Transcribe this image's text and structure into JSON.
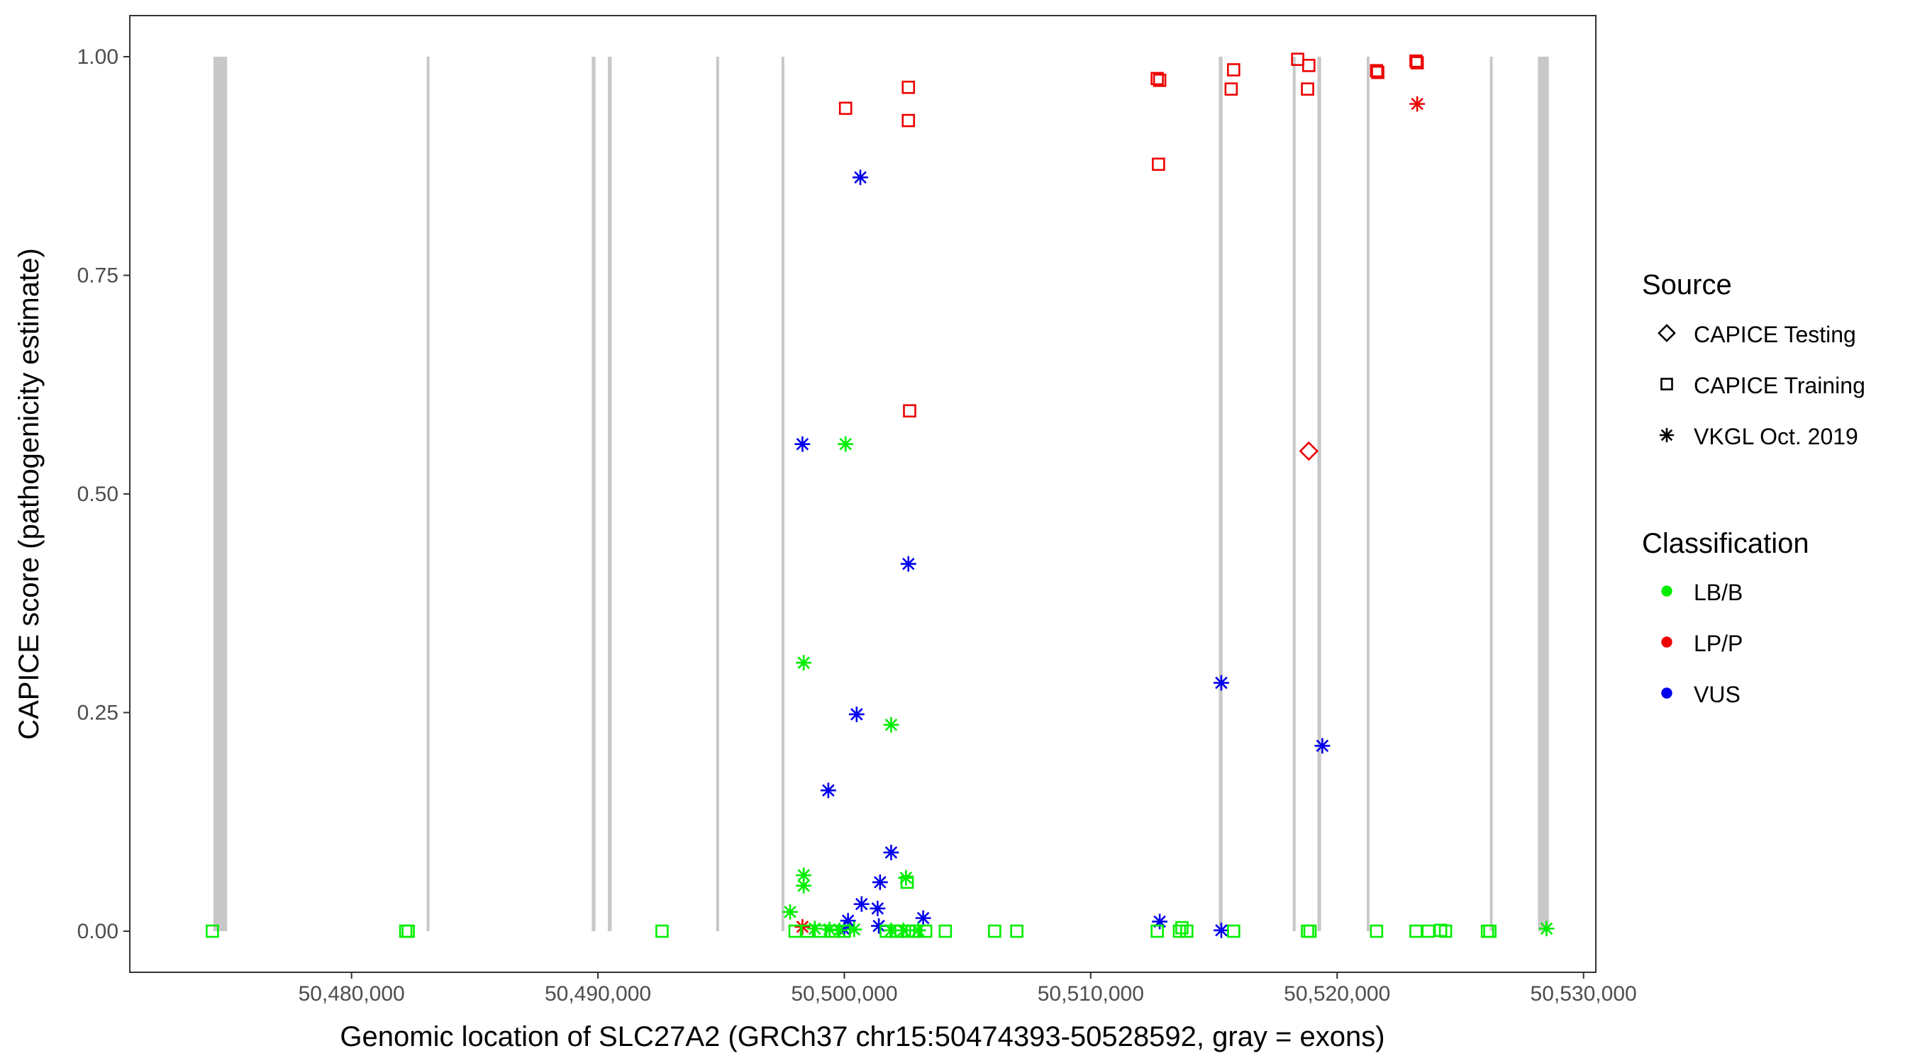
{
  "chart_data": {
    "type": "scatter",
    "xlabel": "Genomic location of SLC27A2 (GRCh37 chr15:50474393-50528592, gray = exons)",
    "ylabel": "CAPICE score (pathogenicity estimate)",
    "xlim": [
      50471000,
      50530500
    ],
    "ylim": [
      -0.047,
      1.047
    ],
    "x_ticks": [
      50480000,
      50490000,
      50500000,
      50510000,
      50520000,
      50530000
    ],
    "x_tick_labels": [
      "50,480,000",
      "50,490,000",
      "50,500,000",
      "50,510,000",
      "50,520,000",
      "50,530,000"
    ],
    "y_ticks": [
      0,
      0.25,
      0.5,
      0.75,
      1
    ],
    "y_tick_labels": [
      "0.00",
      "0.25",
      "0.50",
      "0.75",
      "1.00"
    ],
    "grid": false,
    "exon_color": "#c8c8c8",
    "exons": [
      [
        50474393,
        50474950
      ],
      [
        50483050,
        50483150
      ],
      [
        50489750,
        50489900
      ],
      [
        50490400,
        50490560
      ],
      [
        50494800,
        50494900
      ],
      [
        50497450,
        50497550
      ],
      [
        50515200,
        50515350
      ],
      [
        50518200,
        50518300
      ],
      [
        50519200,
        50519350
      ],
      [
        50521200,
        50521300
      ],
      [
        50526200,
        50526300
      ],
      [
        50528150,
        50528592
      ]
    ],
    "legend": {
      "placement": "right",
      "source_title": "Source",
      "source_entries": [
        {
          "label": "CAPICE Testing",
          "shape": "diamond"
        },
        {
          "label": "CAPICE Training",
          "shape": "square"
        },
        {
          "label": "VKGL Oct. 2019",
          "shape": "asterisk"
        }
      ],
      "class_title": "Classification",
      "class_entries": [
        {
          "label": "LB/B",
          "color": "#00ee00"
        },
        {
          "label": "LP/P",
          "color": "#ee0000"
        },
        {
          "label": "VUS",
          "color": "#0000ee"
        }
      ]
    },
    "series": [
      {
        "source": "CAPICE Training",
        "class": "LP/P",
        "shape": "square",
        "color": "#ee0000",
        "points": [
          [
            50500050,
            0.941
          ],
          [
            50502600,
            0.965
          ],
          [
            50502600,
            0.927
          ],
          [
            50502650,
            0.595
          ],
          [
            50512700,
            0.975
          ],
          [
            50512800,
            0.973
          ],
          [
            50512750,
            0.877
          ],
          [
            50515800,
            0.985
          ],
          [
            50515700,
            0.963
          ],
          [
            50518400,
            0.997
          ],
          [
            50518850,
            0.99
          ],
          [
            50518800,
            0.963
          ],
          [
            50521600,
            0.984
          ],
          [
            50521650,
            0.982
          ],
          [
            50523200,
            0.995
          ],
          [
            50523250,
            0.993
          ]
        ]
      },
      {
        "source": "CAPICE Testing",
        "class": "LP/P",
        "shape": "diamond",
        "color": "#ee0000",
        "points": [
          [
            50518850,
            0.549
          ]
        ]
      },
      {
        "source": "VKGL Oct. 2019",
        "class": "LP/P",
        "shape": "asterisk",
        "color": "#ee0000",
        "points": [
          [
            50523250,
            0.946
          ],
          [
            50498300,
            0.005
          ]
        ]
      },
      {
        "source": "VKGL Oct. 2019",
        "class": "VUS",
        "shape": "asterisk",
        "color": "#0000ee",
        "points": [
          [
            50500650,
            0.862
          ],
          [
            50498300,
            0.557
          ],
          [
            50502600,
            0.42
          ],
          [
            50515300,
            0.284
          ],
          [
            50500500,
            0.248
          ],
          [
            50519400,
            0.212
          ],
          [
            50499350,
            0.161
          ],
          [
            50501900,
            0.09
          ],
          [
            50501450,
            0.056
          ],
          [
            50500700,
            0.031
          ],
          [
            50501350,
            0.026
          ],
          [
            50503200,
            0.015
          ],
          [
            50500150,
            0.012
          ],
          [
            50512800,
            0.011
          ],
          [
            50501400,
            0.006
          ],
          [
            50500000,
            0.002
          ],
          [
            50515300,
            0.001
          ]
        ]
      },
      {
        "source": "VKGL Oct. 2019",
        "class": "LB/B",
        "shape": "asterisk",
        "color": "#00ee00",
        "points": [
          [
            50500050,
            0.557
          ],
          [
            50498350,
            0.307
          ],
          [
            50501900,
            0.236
          ],
          [
            50498350,
            0.064
          ],
          [
            50498350,
            0.052
          ],
          [
            50502500,
            0.061
          ],
          [
            50497800,
            0.022
          ],
          [
            50498800,
            0.003
          ],
          [
            50499400,
            0.002
          ],
          [
            50499800,
            0.001
          ],
          [
            50500400,
            0.002
          ],
          [
            50501900,
            0.001
          ],
          [
            50502400,
            0.001
          ],
          [
            50503000,
            0.001
          ],
          [
            50528500,
            0.003
          ]
        ]
      },
      {
        "source": "CAPICE Training",
        "class": "LB/B",
        "shape": "square",
        "color": "#00ee00",
        "points": [
          [
            50474350,
            0.0
          ],
          [
            50482200,
            0.0
          ],
          [
            50482300,
            0.0
          ],
          [
            50492600,
            0.0
          ],
          [
            50498000,
            0.0
          ],
          [
            50498500,
            0.0
          ],
          [
            50499000,
            0.0
          ],
          [
            50499500,
            0.0
          ],
          [
            50500000,
            0.0
          ],
          [
            50501700,
            0.0
          ],
          [
            50502100,
            0.0
          ],
          [
            50502300,
            0.0
          ],
          [
            50502600,
            0.0
          ],
          [
            50502900,
            0.0
          ],
          [
            50503300,
            0.0
          ],
          [
            50502550,
            0.056
          ],
          [
            50504100,
            0.0
          ],
          [
            50506100,
            0.0
          ],
          [
            50507000,
            0.0
          ],
          [
            50512700,
            0.0
          ],
          [
            50513600,
            0.0
          ],
          [
            50513700,
            0.004
          ],
          [
            50513900,
            0.0
          ],
          [
            50515800,
            0.0
          ],
          [
            50518800,
            0.0
          ],
          [
            50518900,
            0.0
          ],
          [
            50521600,
            0.0
          ],
          [
            50523200,
            0.0
          ],
          [
            50523700,
            0.0
          ],
          [
            50524200,
            0.001
          ],
          [
            50524400,
            0.0
          ],
          [
            50526100,
            0.0
          ],
          [
            50526200,
            0.0
          ]
        ]
      }
    ]
  }
}
